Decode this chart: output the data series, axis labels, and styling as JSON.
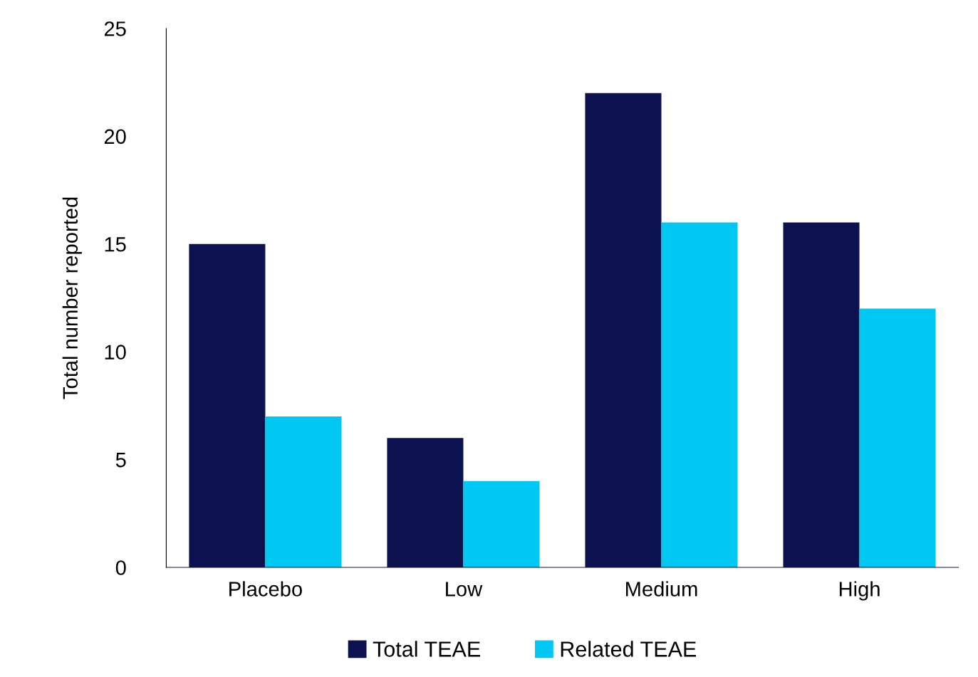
{
  "chart_data": {
    "type": "bar",
    "ylabel": "Total number reported",
    "categories": [
      "Placebo",
      "Low",
      "Medium",
      "High"
    ],
    "series": [
      {
        "name": "Total TEAE",
        "color": "#0c1250",
        "values": [
          15,
          6,
          22,
          16
        ]
      },
      {
        "name": "Related TEAE",
        "color": "#00c8f2",
        "values": [
          7,
          4,
          16,
          12
        ]
      }
    ],
    "ylim": [
      0,
      25
    ],
    "yticks": [
      0,
      5,
      10,
      15,
      20,
      25
    ],
    "grid": false,
    "legend": "bottom"
  }
}
